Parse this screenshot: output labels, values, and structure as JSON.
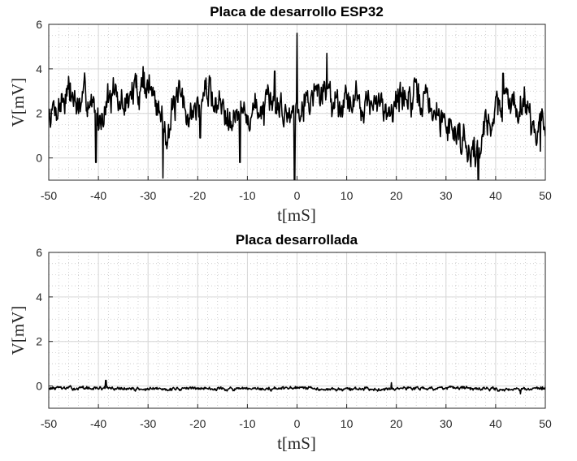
{
  "chart_data": [
    {
      "type": "line",
      "title": "Placa de desarrollo ESP32",
      "xlabel": "t[mS]",
      "ylabel": "V[mV]",
      "xlim": [
        -50,
        50
      ],
      "ylim": [
        -1,
        6
      ],
      "x_ticks": [
        "-50",
        "-40",
        "-30",
        "-20",
        "-10",
        "0",
        "10",
        "20",
        "30",
        "40",
        "50"
      ],
      "y_ticks": [
        "0",
        "2",
        "4",
        "6"
      ],
      "grid": true,
      "minor_grid": true,
      "line_color": "#000000",
      "series": [
        {
          "x": [
            -50,
            -48,
            -46,
            -44,
            -42,
            -40,
            -38,
            -36,
            -34,
            -32,
            -30,
            -28,
            -26,
            -24,
            -22,
            -20,
            -18,
            -16,
            -14,
            -12,
            -10,
            -8,
            -6,
            -4,
            -2,
            0,
            2,
            4,
            6,
            8,
            10,
            12,
            14,
            16,
            18,
            20,
            22,
            24,
            26,
            28,
            30,
            32,
            34,
            36,
            38,
            40,
            42,
            44,
            46,
            48,
            50
          ],
          "values": [
            2.0,
            2.4,
            3.1,
            2.2,
            2.8,
            1.6,
            2.9,
            2.3,
            2.6,
            3.2,
            3.4,
            2.1,
            1.3,
            2.6,
            2.0,
            2.2,
            3.1,
            2.4,
            2.2,
            2.0,
            1.8,
            2.3,
            2.1,
            2.5,
            1.9,
            2.6,
            2.7,
            2.9,
            3.1,
            2.5,
            2.8,
            2.6,
            2.5,
            2.2,
            2.3,
            2.5,
            2.9,
            2.4,
            2.7,
            1.8,
            1.6,
            1.2,
            0.8,
            0.2,
            1.4,
            2.2,
            2.6,
            2.4,
            2.7,
            1.2,
            1.9
          ],
          "spikes": [
            {
              "x": -40.5,
              "y": -0.2
            },
            {
              "x": -37.0,
              "y": 3.6
            },
            {
              "x": -31.0,
              "y": 4.1
            },
            {
              "x": -27.0,
              "y": -0.9
            },
            {
              "x": -19.5,
              "y": 0.9
            },
            {
              "x": -17.5,
              "y": 3.6
            },
            {
              "x": -11.5,
              "y": -0.2
            },
            {
              "x": -4.5,
              "y": 3.9
            },
            {
              "x": -0.5,
              "y": -1.0
            },
            {
              "x": 0.0,
              "y": 5.6
            },
            {
              "x": 6.0,
              "y": 4.7
            },
            {
              "x": 35.0,
              "y": -0.4
            },
            {
              "x": 36.5,
              "y": -1.0
            },
            {
              "x": 41.5,
              "y": 3.8
            },
            {
              "x": 49.0,
              "y": 0.3
            }
          ]
        }
      ]
    },
    {
      "type": "line",
      "title": "Placa desarrollada",
      "xlabel": "t[mS]",
      "ylabel": "V[mV]",
      "xlim": [
        -50,
        50
      ],
      "ylim": [
        -1,
        6
      ],
      "x_ticks": [
        "-50",
        "-40",
        "-30",
        "-20",
        "-10",
        "0",
        "10",
        "20",
        "30",
        "40",
        "50"
      ],
      "y_ticks": [
        "0",
        "2",
        "4",
        "6"
      ],
      "grid": true,
      "minor_grid": true,
      "line_color": "#000000",
      "series": [
        {
          "x": [
            -50,
            -40,
            -30,
            -20,
            -10,
            0,
            10,
            20,
            30,
            40,
            50
          ],
          "values": [
            -0.1,
            -0.1,
            -0.15,
            -0.1,
            -0.15,
            -0.1,
            -0.15,
            -0.1,
            -0.1,
            -0.15,
            -0.1
          ],
          "spikes": [
            {
              "x": -38.5,
              "y": 0.25
            },
            {
              "x": 19.0,
              "y": 0.15
            },
            {
              "x": 45.0,
              "y": -0.35
            }
          ]
        }
      ]
    }
  ]
}
